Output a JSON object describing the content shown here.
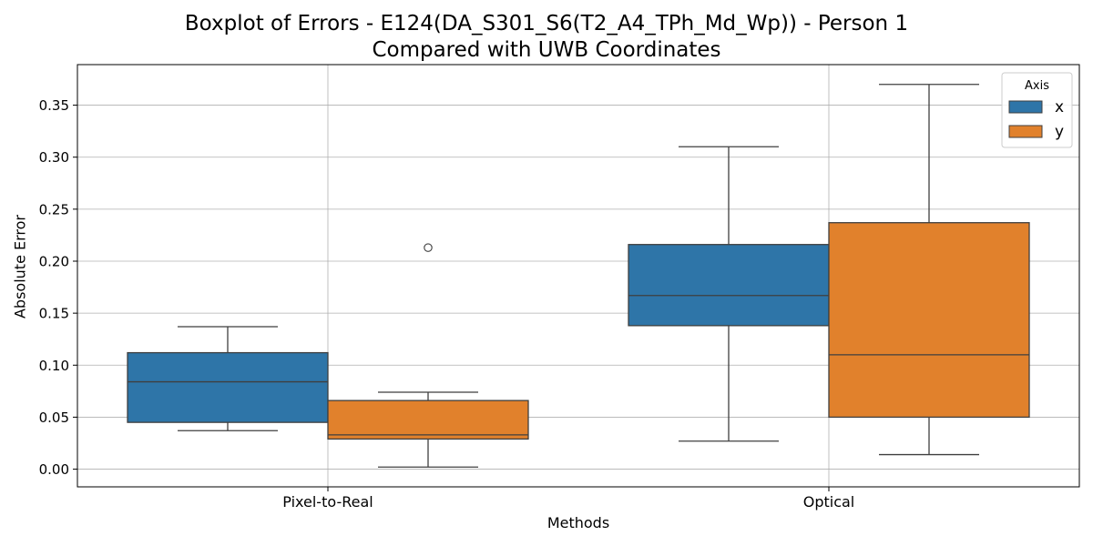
{
  "chart_data": {
    "type": "boxplot",
    "title_lines": [
      "Boxplot of Errors - E124(DA_S301_S6(T2_A4_TPh_Md_Wp)) - Person 1",
      "Compared with UWB Coordinates"
    ],
    "xlabel": "Methods",
    "ylabel": "Absolute Error",
    "categories": [
      "Pixel-to-Real",
      "Optical"
    ],
    "ylim": [
      -0.017,
      0.389
    ],
    "yticks": [
      "0.00",
      "0.05",
      "0.10",
      "0.15",
      "0.20",
      "0.25",
      "0.30",
      "0.35"
    ],
    "ytick_values": [
      0.0,
      0.05,
      0.1,
      0.15,
      0.2,
      0.25,
      0.3,
      0.35
    ],
    "grid": true,
    "legend": {
      "title": "Axis",
      "placement": "top-right"
    },
    "series": [
      {
        "name": "x",
        "color": "#2e75a8",
        "boxes": [
          {
            "whisker_low": 0.037,
            "q1": 0.045,
            "median": 0.084,
            "q3": 0.112,
            "whisker_high": 0.137,
            "outliers": []
          },
          {
            "whisker_low": 0.027,
            "q1": 0.138,
            "median": 0.167,
            "q3": 0.216,
            "whisker_high": 0.31,
            "outliers": []
          }
        ]
      },
      {
        "name": "y",
        "color": "#e1812c",
        "boxes": [
          {
            "whisker_low": 0.002,
            "q1": 0.029,
            "median": 0.033,
            "q3": 0.066,
            "whisker_high": 0.074,
            "outliers": [
              0.213
            ]
          },
          {
            "whisker_low": 0.014,
            "q1": 0.05,
            "median": 0.11,
            "q3": 0.237,
            "whisker_high": 0.37,
            "outliers": []
          }
        ]
      }
    ]
  }
}
